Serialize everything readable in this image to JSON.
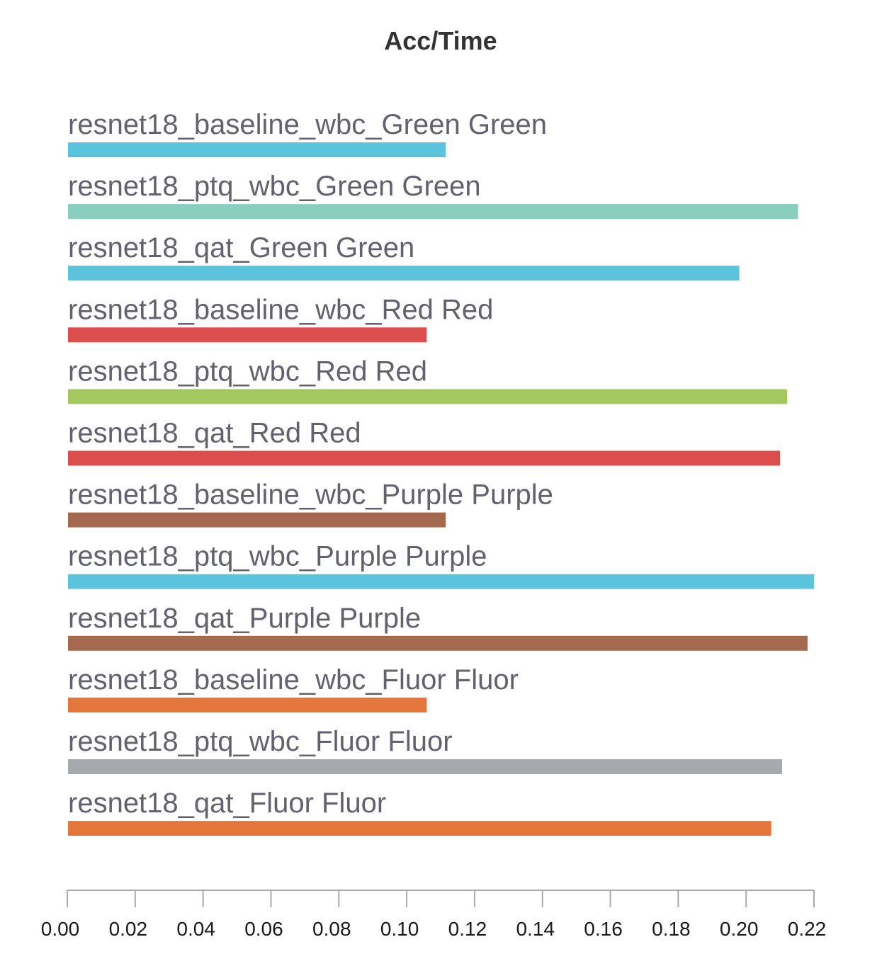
{
  "chart_data": {
    "type": "bar",
    "orientation": "horizontal",
    "title": "Acc/Time",
    "xlabel": "",
    "ylabel": "",
    "xlim": [
      0,
      0.22
    ],
    "x_ticks": [
      "0.00",
      "0.02",
      "0.04",
      "0.06",
      "0.08",
      "0.10",
      "0.12",
      "0.14",
      "0.16",
      "0.18",
      "0.20",
      "0.22"
    ],
    "grid": false,
    "legend": "none",
    "categories": [
      "resnet18_baseline_wbc_Green Green",
      "resnet18_ptq_wbc_Green Green",
      "resnet18_qat_Green Green",
      "resnet18_baseline_wbc_Red Red",
      "resnet18_ptq_wbc_Red Red",
      "resnet18_qat_Red Red",
      "resnet18_baseline_wbc_Purple Purple",
      "resnet18_ptq_wbc_Purple Purple",
      "resnet18_qat_Purple Purple",
      "resnet18_baseline_wbc_Fluor Fluor",
      "resnet18_ptq_wbc_Fluor Fluor",
      "resnet18_qat_Fluor Fluor"
    ],
    "values": [
      0.1115,
      0.2153,
      0.198,
      0.1059,
      0.2121,
      0.21,
      0.1115,
      0.22,
      0.2181,
      0.1059,
      0.2106,
      0.2074
    ],
    "colors": [
      "#5bc4dc",
      "#88cfc0",
      "#5bc4dc",
      "#dc4e4e",
      "#a3c95e",
      "#dc4e4e",
      "#a4694f",
      "#5bc4dc",
      "#a4694f",
      "#e5763b",
      "#a5a8ad",
      "#e5763b"
    ]
  }
}
